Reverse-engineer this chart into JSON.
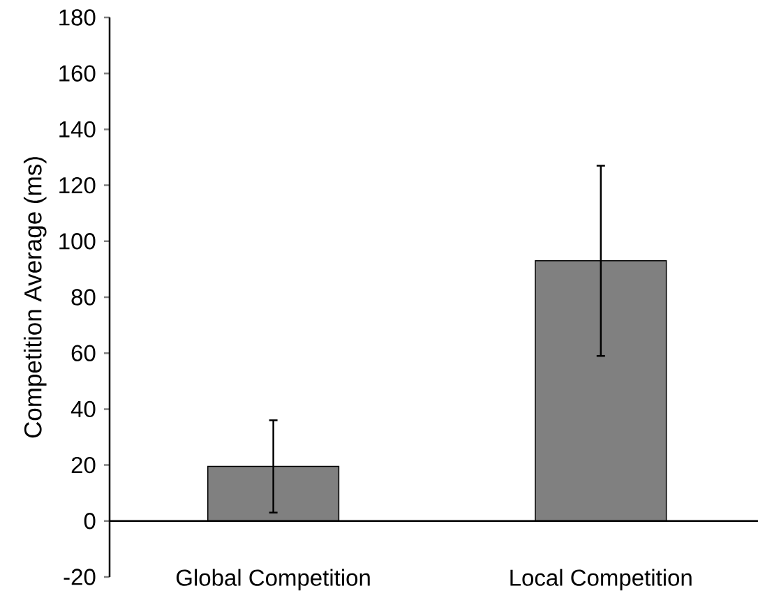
{
  "chart_data": {
    "type": "bar",
    "ylabel": "Competition Average (ms)",
    "categories": [
      "Global Competition",
      "Local Competition"
    ],
    "values": [
      19.5,
      93
    ],
    "errors": [
      16.5,
      34
    ],
    "color": "#808080",
    "ylim": [
      -20,
      180
    ],
    "yticks": [
      -20,
      0,
      20,
      40,
      60,
      80,
      100,
      120,
      140,
      160,
      180
    ]
  }
}
